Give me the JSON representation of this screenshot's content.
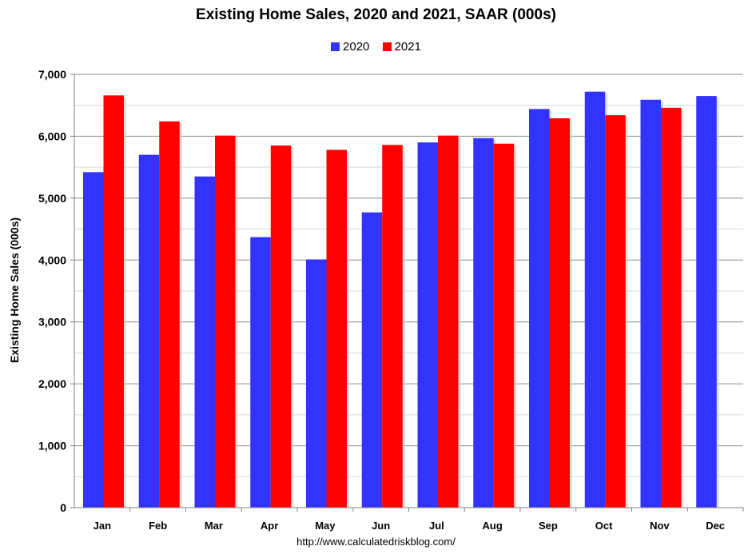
{
  "chart_data": {
    "type": "bar",
    "title": "Existing Home Sales,  2020 and 2021, SAAR (000s)",
    "ylabel": "Existing Home Sales (000s)",
    "xlabel": "",
    "source": "http://www.calculatedriskblog.com/",
    "categories": [
      "Jan",
      "Feb",
      "Mar",
      "Apr",
      "May",
      "Jun",
      "Jul",
      "Aug",
      "Sep",
      "Oct",
      "Nov",
      "Dec"
    ],
    "series": [
      {
        "name": "2020",
        "color": "#3333ff",
        "values": [
          5420,
          5700,
          5350,
          4370,
          4010,
          4770,
          5900,
          5970,
          6440,
          6720,
          6590,
          6650
        ]
      },
      {
        "name": "2021",
        "color": "#ff0000",
        "values": [
          6660,
          6240,
          6010,
          5850,
          5780,
          5860,
          6010,
          5880,
          6290,
          6340,
          6460,
          null
        ]
      }
    ],
    "ylim": [
      0,
      7000
    ],
    "yticks": [
      0,
      1000,
      2000,
      3000,
      4000,
      5000,
      6000,
      7000
    ],
    "ytick_labels": [
      "0",
      "1,000",
      "2,000",
      "3,000",
      "4,000",
      "5,000",
      "6,000",
      "7,000"
    ],
    "grid": true,
    "legend_position": "top-center"
  }
}
